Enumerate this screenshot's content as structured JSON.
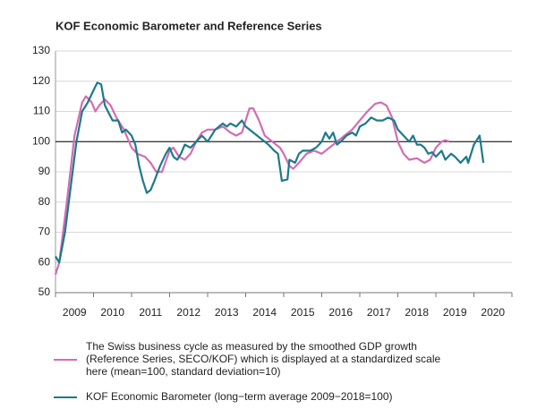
{
  "chart_data": {
    "type": "line",
    "title": "KOF Economic Barometer and Reference Series",
    "categories": [
      "2009",
      "2010",
      "2011",
      "2012",
      "2013",
      "2014",
      "2015",
      "2016",
      "2017",
      "2018",
      "2019",
      "2020"
    ],
    "xlim": [
      2009,
      2021
    ],
    "xticks": [
      2009,
      2010,
      2011,
      2012,
      2013,
      2014,
      2015,
      2016,
      2017,
      2018,
      2019,
      2020,
      2021
    ],
    "ylim": [
      50,
      130
    ],
    "yticks": [
      50,
      60,
      70,
      80,
      90,
      100,
      110,
      120,
      130
    ],
    "grid": true,
    "reference_line": 100,
    "series": [
      {
        "name": "The Swiss business cycle as measured by the smoothed GDP growth (Reference Series, SECO/KOF) which is displayed at a standardized scale here (mean=100, standard deviation=10)",
        "color": "#d46cb4",
        "x": [
          2009.0,
          2009.1,
          2009.3,
          2009.5,
          2009.7,
          2009.8,
          2009.95,
          2010.05,
          2010.15,
          2010.3,
          2010.45,
          2010.6,
          2010.8,
          2011.0,
          2011.15,
          2011.35,
          2011.5,
          2011.65,
          2011.8,
          2012.0,
          2012.1,
          2012.25,
          2012.4,
          2012.55,
          2012.7,
          2012.85,
          2013.0,
          2013.2,
          2013.4,
          2013.6,
          2013.75,
          2013.9,
          2014.0,
          2014.1,
          2014.2,
          2014.35,
          2014.5,
          2014.7,
          2014.9,
          2015.0,
          2015.15,
          2015.25,
          2015.4,
          2015.6,
          2015.8,
          2016.0,
          2016.2,
          2016.4,
          2016.6,
          2016.8,
          2017.0,
          2017.2,
          2017.4,
          2017.55,
          2017.7,
          2017.85,
          2018.0,
          2018.15,
          2018.3,
          2018.5,
          2018.7,
          2018.85,
          2019.0,
          2019.15,
          2019.25,
          2019.35
        ],
        "values": [
          56,
          60,
          80,
          102,
          113,
          115,
          113,
          110,
          112,
          114,
          112,
          108,
          104,
          98,
          96,
          95,
          93,
          90,
          90,
          97,
          98,
          95,
          94,
          96,
          100,
          103,
          104,
          104,
          105,
          103,
          102,
          103,
          107,
          111,
          111,
          107,
          102,
          100,
          98,
          96,
          92,
          91,
          93,
          96,
          97,
          96,
          98,
          100,
          102,
          104,
          107,
          110,
          112.5,
          113,
          112,
          108,
          100,
          96,
          94,
          94.5,
          93,
          94,
          98,
          100,
          100.5,
          100
        ]
      },
      {
        "name": "KOF Economic Barometer (long−term average 2009−2018=100)",
        "color": "#1d7a8a",
        "x": [
          2009.0,
          2009.1,
          2009.25,
          2009.4,
          2009.55,
          2009.7,
          2009.85,
          2010.0,
          2010.1,
          2010.2,
          2010.3,
          2010.5,
          2010.65,
          2010.75,
          2010.85,
          2011.0,
          2011.1,
          2011.2,
          2011.3,
          2011.4,
          2011.5,
          2011.6,
          2011.75,
          2011.9,
          2012.0,
          2012.1,
          2012.2,
          2012.3,
          2012.4,
          2012.55,
          2012.7,
          2012.85,
          2013.0,
          2013.2,
          2013.4,
          2013.5,
          2013.6,
          2013.75,
          2013.9,
          2014.0,
          2014.2,
          2014.4,
          2014.6,
          2014.75,
          2014.85,
          2014.95,
          2015.1,
          2015.15,
          2015.3,
          2015.4,
          2015.5,
          2015.7,
          2015.85,
          2016.0,
          2016.1,
          2016.2,
          2016.3,
          2016.4,
          2016.5,
          2016.65,
          2016.8,
          2016.9,
          2017.0,
          2017.15,
          2017.3,
          2017.45,
          2017.6,
          2017.75,
          2017.9,
          2018.0,
          2018.15,
          2018.3,
          2018.4,
          2018.5,
          2018.6,
          2018.7,
          2018.8,
          2018.9,
          2019.0,
          2019.15,
          2019.25,
          2019.4,
          2019.5,
          2019.65,
          2019.8,
          2019.85,
          2020.0,
          2020.15,
          2020.25
        ],
        "values": [
          62,
          60,
          70,
          85,
          100,
          110,
          113,
          117,
          119.5,
          119,
          112,
          107,
          107,
          103,
          104,
          102,
          99,
          92,
          87,
          83,
          84,
          87,
          92,
          96,
          98,
          95,
          94,
          96,
          99,
          98,
          100,
          102,
          100,
          104,
          106,
          105,
          106,
          105,
          107,
          105,
          103,
          101,
          99,
          97,
          96,
          87,
          87.5,
          94,
          93,
          96,
          97,
          97,
          98,
          100,
          103,
          101,
          103,
          99,
          100,
          102,
          103,
          102,
          105,
          106,
          108,
          107,
          107,
          108,
          107,
          104,
          102,
          100,
          102,
          99,
          99,
          98,
          96,
          96.5,
          95,
          97,
          94,
          96,
          95,
          93,
          95,
          93,
          99,
          102,
          93
        ]
      }
    ]
  }
}
